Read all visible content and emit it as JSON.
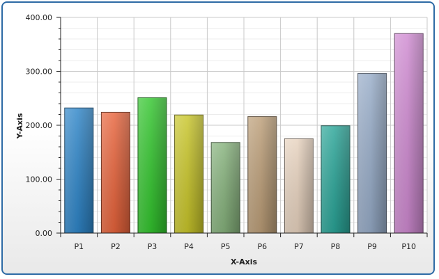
{
  "chart_data": {
    "type": "bar",
    "title": "",
    "xlabel": "X-Axis",
    "ylabel": "Y-Axis",
    "categories": [
      "P1",
      "P2",
      "P3",
      "P4",
      "P5",
      "P6",
      "P7",
      "P8",
      "P9",
      "P10"
    ],
    "values": [
      232,
      224,
      251,
      219,
      168,
      216,
      175,
      199,
      296,
      370
    ],
    "ylim": [
      0,
      400
    ],
    "yticks": [
      "0.00",
      "100.00",
      "200.00",
      "300.00",
      "400.00"
    ],
    "grid": true,
    "legend": "none",
    "colors": [
      "#2f86c9",
      "#e8643c",
      "#33c52e",
      "#c9c62a",
      "#86b27c",
      "#bc9e78",
      "#e8d3bf",
      "#2aa598",
      "#97acc8",
      "#cf8ad1"
    ]
  }
}
